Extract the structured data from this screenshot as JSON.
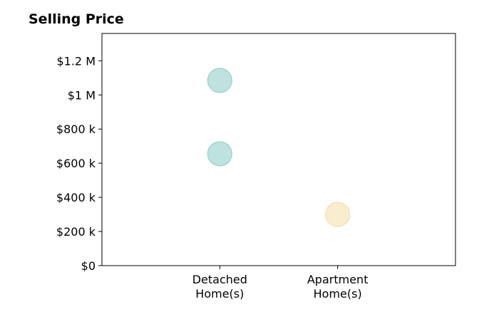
{
  "chart_data": {
    "type": "scatter",
    "title": "Selling Price",
    "xlabel": "",
    "ylabel": "",
    "categories": [
      [
        "Detached",
        "Home(s)"
      ],
      [
        "Apartment",
        "Home(s)"
      ]
    ],
    "x_range": [
      -1,
      2
    ],
    "ylim": [
      0,
      1360000
    ],
    "y_ticks": [
      {
        "value": 0,
        "label": "$0"
      },
      {
        "value": 200000,
        "label": "$200 k"
      },
      {
        "value": 400000,
        "label": "$400 k"
      },
      {
        "value": 600000,
        "label": "$600 k"
      },
      {
        "value": 800000,
        "label": "$800 k"
      },
      {
        "value": 1000000,
        "label": "$1 M"
      },
      {
        "value": 1200000,
        "label": "$1.2 M"
      }
    ],
    "points": [
      {
        "category": 0,
        "value": 1085000,
        "color": "#a8d8d4",
        "stroke": "#8ccac4"
      },
      {
        "category": 0,
        "value": 655000,
        "color": "#a8d8d4",
        "stroke": "#8ccac4"
      },
      {
        "category": 1,
        "value": 300000,
        "color": "#f7e5bf",
        "stroke": "#f0d9a8"
      }
    ],
    "grid": false,
    "legend": "none"
  }
}
